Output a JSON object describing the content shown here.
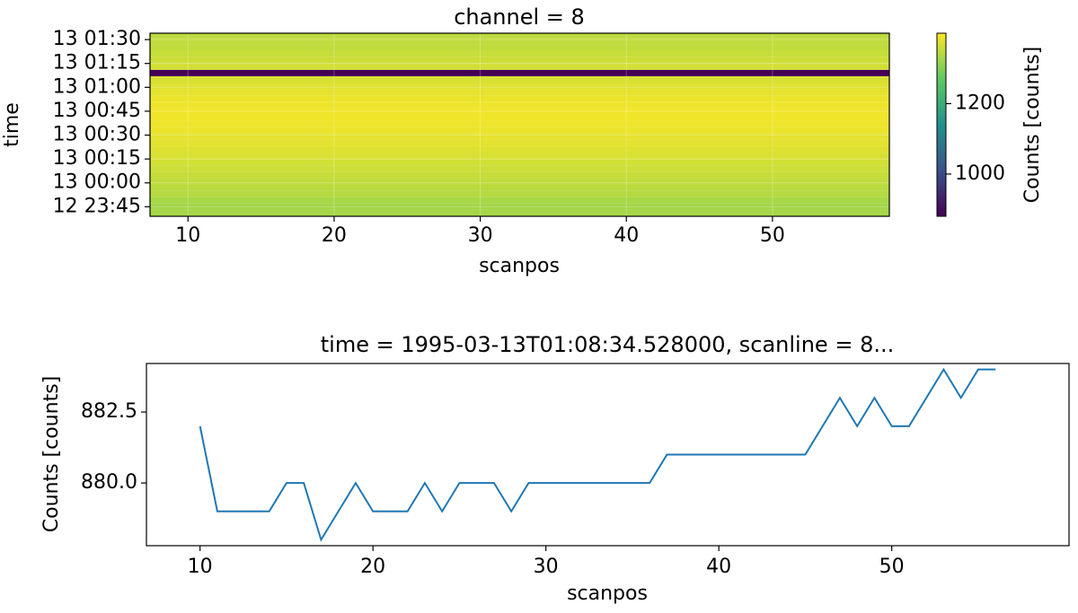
{
  "chart_data": [
    {
      "type": "heatmap",
      "title": "channel = 8",
      "x_label": "scanpos",
      "y_label": "time",
      "xlim": [
        7.4,
        58
      ],
      "xticks": [
        10,
        20,
        30,
        40,
        50
      ],
      "ylim": [
        "12 23:39",
        "13 01:34"
      ],
      "yticks": [
        "12 23:45",
        "13 00:00",
        "13 00:15",
        "13 00:30",
        "13 00:45",
        "13 01:00",
        "13 01:15",
        "13 01:30"
      ],
      "grid": true,
      "colormap": "viridis",
      "rows": [
        "12 23:41",
        "12 23:45",
        "12 23:49",
        "12 23:53",
        "12 23:57",
        "13 00:01",
        "13 00:05",
        "13 00:09",
        "13 00:13",
        "13 00:17",
        "13 00:21",
        "13 00:25",
        "13 00:29",
        "13 00:33",
        "13 00:37",
        "13 00:41",
        "13 00:45",
        "13 00:49",
        "13 00:53",
        "13 00:57",
        "13 01:01",
        "13 01:05",
        "13 01:09",
        "13 01:13",
        "13 01:17",
        "13 01:21",
        "13 01:25",
        "13 01:29",
        "13 01:33"
      ],
      "values": [
        1330,
        1325,
        1330,
        1340,
        1345,
        1350,
        1355,
        1360,
        1365,
        1370,
        1375,
        1378,
        1380,
        1385,
        1388,
        1390,
        1390,
        1388,
        1385,
        1380,
        1375,
        1370,
        880,
        1365,
        1360,
        1355,
        1350,
        1350,
        1345
      ],
      "colorbar": {
        "label": "Counts [counts]",
        "lim": [
          880,
          1400
        ],
        "ticks": [
          1000,
          1200
        ]
      }
    },
    {
      "type": "line",
      "title": "time = 1995-03-13T01:08:34.528000, scanline = 8...",
      "x_label": "scanpos",
      "y_label": "Counts [counts]",
      "color": "#1f77b4",
      "xlim": [
        6.9,
        60.25
      ],
      "xticks": [
        10,
        20,
        30,
        40,
        50
      ],
      "ylim": [
        877.79,
        884.21
      ],
      "yticks": [
        {
          "value": 880,
          "label": "880.0"
        },
        {
          "value": 882.5,
          "label": "882.5"
        }
      ],
      "x": [
        10,
        11,
        12,
        13,
        14,
        15,
        16,
        17,
        18,
        19,
        20,
        21,
        22,
        23,
        24,
        25,
        26,
        27,
        28,
        29,
        30,
        31,
        32,
        33,
        34,
        35,
        36,
        37,
        38,
        39,
        40,
        41,
        42,
        43,
        44,
        45,
        46,
        47,
        48,
        49,
        50,
        51,
        52,
        53,
        54,
        55,
        56
      ],
      "values": [
        882,
        879,
        879,
        879,
        879,
        880,
        880,
        878,
        879,
        880,
        879,
        879,
        879,
        880,
        879,
        880,
        880,
        880,
        879,
        880,
        880,
        880,
        880,
        880,
        880,
        880,
        880,
        881,
        881,
        881,
        881,
        881,
        881,
        881,
        881,
        881,
        882,
        883,
        882,
        883,
        882,
        882,
        883,
        884,
        883,
        884,
        884
      ]
    }
  ]
}
